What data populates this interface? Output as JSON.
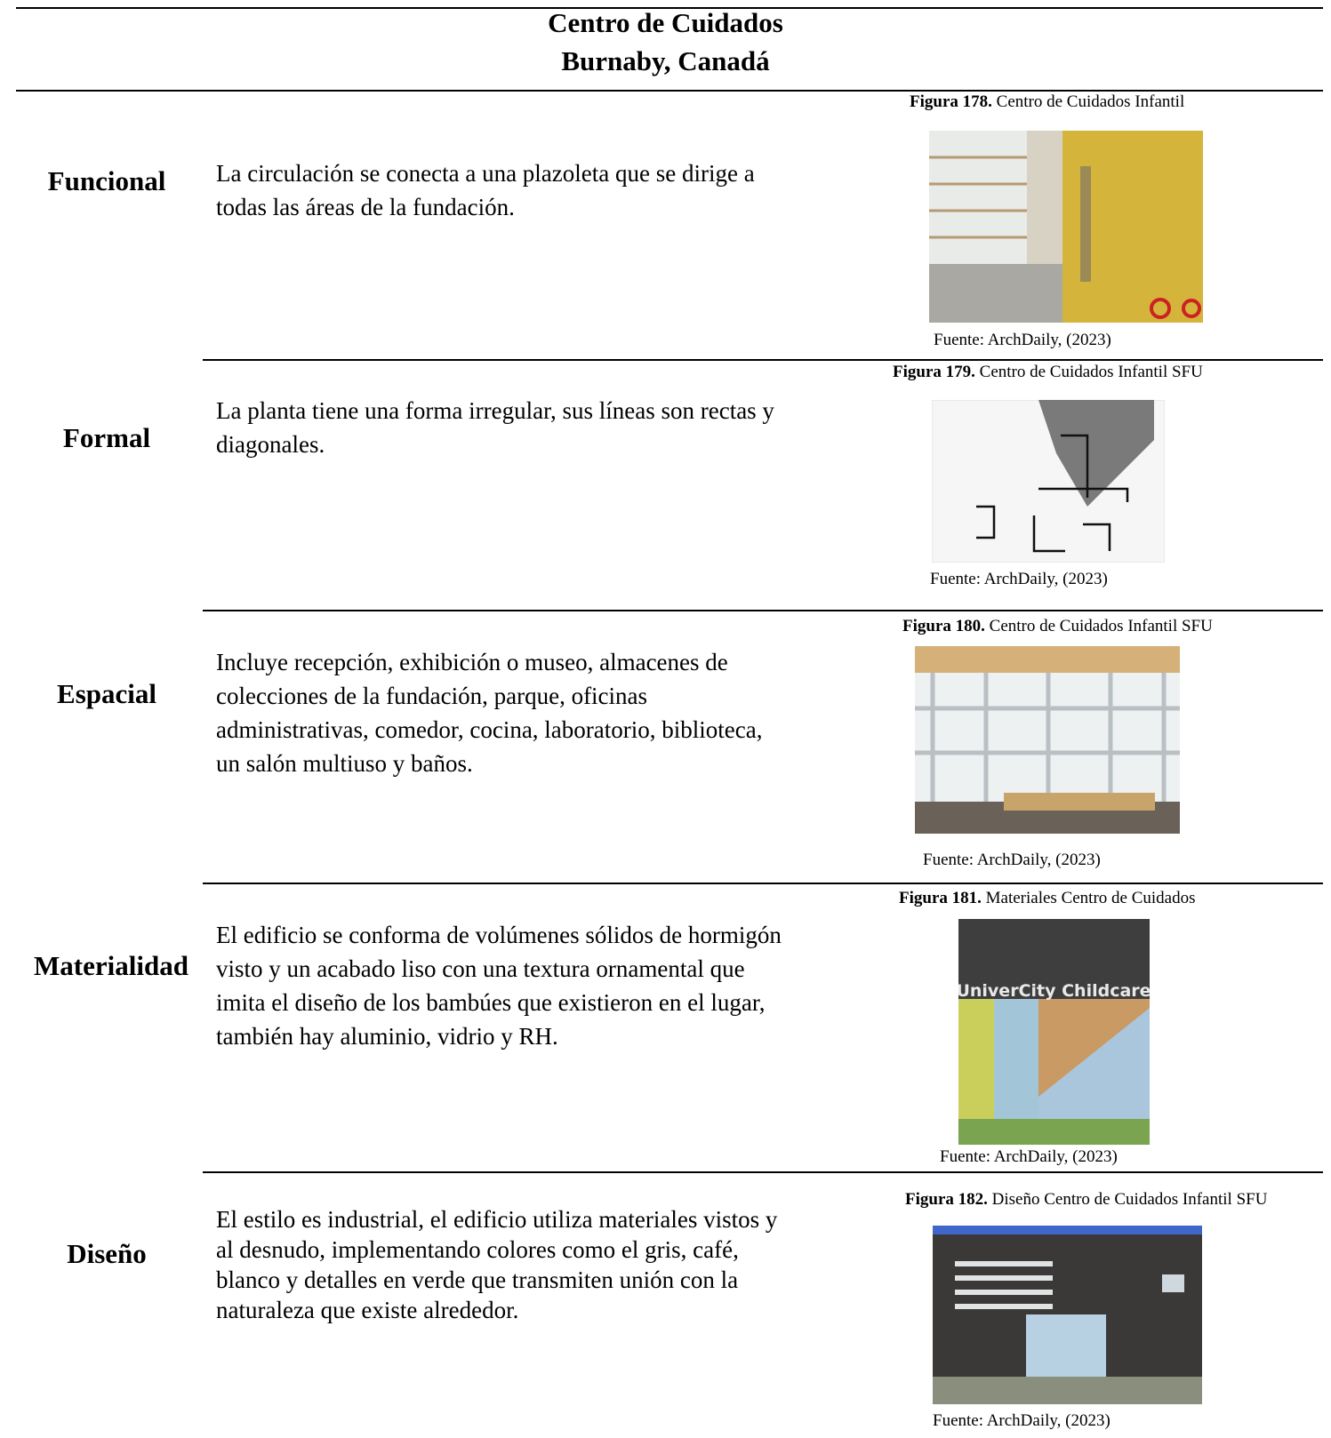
{
  "header": {
    "title": "Centro de Cuidados",
    "subtitle": "Burnaby, Canadá"
  },
  "rows": [
    {
      "label": "Funcional",
      "text": "La circulación se conecta a una plazoleta que se dirige a todas las áreas de la fundación.",
      "figure": {
        "number": "Figura 178.",
        "caption": "Centro de Cuidados Infantil",
        "source": "Fuente: ArchDaily, (2023)"
      }
    },
    {
      "label": "Formal",
      "text": "La planta tiene una forma irregular, sus líneas son rectas y diagonales.",
      "figure": {
        "number": "Figura 179.",
        "caption": "Centro de Cuidados Infantil SFU",
        "source": "Fuente: ArchDaily, (2023)"
      }
    },
    {
      "label": "Espacial",
      "text": "Incluye recepción, exhibición o museo, almacenes de colecciones de la fundación, parque, oficinas administrativas, comedor, cocina, laboratorio, biblioteca, un salón multiuso y baños.",
      "figure": {
        "number": "Figura 180.",
        "caption": "Centro de Cuidados Infantil SFU",
        "source": "Fuente: ArchDaily, (2023)"
      }
    },
    {
      "label": "Materialidad",
      "text": "El edificio se conforma de volúmenes sólidos de hormigón visto y un acabado liso con una textura ornamental que imita el diseño de los bambúes que existieron en el lugar, también hay aluminio, vidrio y RH.",
      "figure": {
        "number": "Figura 181.",
        "caption": "Materiales Centro de Cuidados",
        "source": "Fuente: ArchDaily, (2023)",
        "image_text": "UniverCity Childcare"
      }
    },
    {
      "label": "Diseño",
      "text": "El estilo es industrial, el edificio utiliza materiales vistos y al desnudo, implementando colores como el gris, café, blanco y detalles en verde que transmiten unión con la naturaleza que existe alrededor.",
      "figure": {
        "number": "Figura 182.",
        "caption": "Diseño Centro de Cuidados Infantil SFU",
        "source": "Fuente: ArchDaily, (2023)"
      }
    }
  ]
}
